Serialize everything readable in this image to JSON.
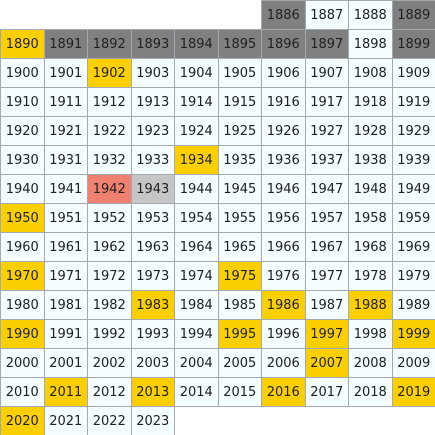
{
  "default_color": "#f4fdff",
  "cells": [
    {
      "year": 1886,
      "color": "#808080"
    },
    {
      "year": 1887
    },
    {
      "year": 1888
    },
    {
      "year": 1889,
      "color": "#808080"
    },
    {
      "year": 1890,
      "color": "#fcd000"
    },
    {
      "year": 1891,
      "color": "#808080"
    },
    {
      "year": 1892,
      "color": "#808080"
    },
    {
      "year": 1893,
      "color": "#808080"
    },
    {
      "year": 1894,
      "color": "#808080"
    },
    {
      "year": 1895,
      "color": "#808080"
    },
    {
      "year": 1896,
      "color": "#808080"
    },
    {
      "year": 1897,
      "color": "#808080"
    },
    {
      "year": 1898
    },
    {
      "year": 1899,
      "color": "#808080"
    },
    {
      "year": 1900
    },
    {
      "year": 1901
    },
    {
      "year": 1902,
      "color": "#fcd000"
    },
    {
      "year": 1903
    },
    {
      "year": 1904
    },
    {
      "year": 1905
    },
    {
      "year": 1906
    },
    {
      "year": 1907
    },
    {
      "year": 1908
    },
    {
      "year": 1909
    },
    {
      "year": 1910
    },
    {
      "year": 1911
    },
    {
      "year": 1912
    },
    {
      "year": 1913
    },
    {
      "year": 1914
    },
    {
      "year": 1915
    },
    {
      "year": 1916
    },
    {
      "year": 1917
    },
    {
      "year": 1918
    },
    {
      "year": 1919
    },
    {
      "year": 1920
    },
    {
      "year": 1921
    },
    {
      "year": 1922
    },
    {
      "year": 1923
    },
    {
      "year": 1924
    },
    {
      "year": 1925
    },
    {
      "year": 1926
    },
    {
      "year": 1927
    },
    {
      "year": 1928
    },
    {
      "year": 1929
    },
    {
      "year": 1930
    },
    {
      "year": 1931
    },
    {
      "year": 1932
    },
    {
      "year": 1933
    },
    {
      "year": 1934,
      "color": "#fcd000"
    },
    {
      "year": 1935
    },
    {
      "year": 1936
    },
    {
      "year": 1937
    },
    {
      "year": 1938
    },
    {
      "year": 1939
    },
    {
      "year": 1940
    },
    {
      "year": 1941
    },
    {
      "year": 1942,
      "color": "#f08070"
    },
    {
      "year": 1943,
      "color": "#c6c6c6"
    },
    {
      "year": 1944
    },
    {
      "year": 1945
    },
    {
      "year": 1946
    },
    {
      "year": 1947
    },
    {
      "year": 1948
    },
    {
      "year": 1949
    },
    {
      "year": 1950,
      "color": "#fcd000"
    },
    {
      "year": 1951
    },
    {
      "year": 1952
    },
    {
      "year": 1953
    },
    {
      "year": 1954
    },
    {
      "year": 1955
    },
    {
      "year": 1956
    },
    {
      "year": 1957
    },
    {
      "year": 1958
    },
    {
      "year": 1959
    },
    {
      "year": 1960
    },
    {
      "year": 1961
    },
    {
      "year": 1962
    },
    {
      "year": 1963
    },
    {
      "year": 1964
    },
    {
      "year": 1965
    },
    {
      "year": 1966
    },
    {
      "year": 1967
    },
    {
      "year": 1968
    },
    {
      "year": 1969
    },
    {
      "year": 1970,
      "color": "#fcd000"
    },
    {
      "year": 1971
    },
    {
      "year": 1972
    },
    {
      "year": 1973
    },
    {
      "year": 1974
    },
    {
      "year": 1975,
      "color": "#fcd000"
    },
    {
      "year": 1976
    },
    {
      "year": 1977
    },
    {
      "year": 1978
    },
    {
      "year": 1979
    },
    {
      "year": 1980
    },
    {
      "year": 1981
    },
    {
      "year": 1982
    },
    {
      "year": 1983,
      "color": "#fcd000"
    },
    {
      "year": 1984
    },
    {
      "year": 1985
    },
    {
      "year": 1986,
      "color": "#fcd000"
    },
    {
      "year": 1987
    },
    {
      "year": 1988,
      "color": "#fcd000"
    },
    {
      "year": 1989
    },
    {
      "year": 1990,
      "color": "#fcd000"
    },
    {
      "year": 1991
    },
    {
      "year": 1992
    },
    {
      "year": 1993
    },
    {
      "year": 1994
    },
    {
      "year": 1995,
      "color": "#fcd000"
    },
    {
      "year": 1996
    },
    {
      "year": 1997,
      "color": "#fcd000"
    },
    {
      "year": 1998
    },
    {
      "year": 1999,
      "color": "#fcd000"
    },
    {
      "year": 2000
    },
    {
      "year": 2001
    },
    {
      "year": 2002
    },
    {
      "year": 2003
    },
    {
      "year": 2004
    },
    {
      "year": 2005
    },
    {
      "year": 2006
    },
    {
      "year": 2007,
      "color": "#fcd000"
    },
    {
      "year": 2008
    },
    {
      "year": 2009
    },
    {
      "year": 2010
    },
    {
      "year": 2011,
      "color": "#fcd000"
    },
    {
      "year": 2012
    },
    {
      "year": 2013,
      "color": "#fcd000"
    },
    {
      "year": 2014
    },
    {
      "year": 2015
    },
    {
      "year": 2016,
      "color": "#fcd000"
    },
    {
      "year": 2017
    },
    {
      "year": 2018
    },
    {
      "year": 2019,
      "color": "#fcd000"
    },
    {
      "year": 2020,
      "color": "#fcd000"
    },
    {
      "year": 2021
    },
    {
      "year": 2022
    },
    {
      "year": 2023
    }
  ]
}
